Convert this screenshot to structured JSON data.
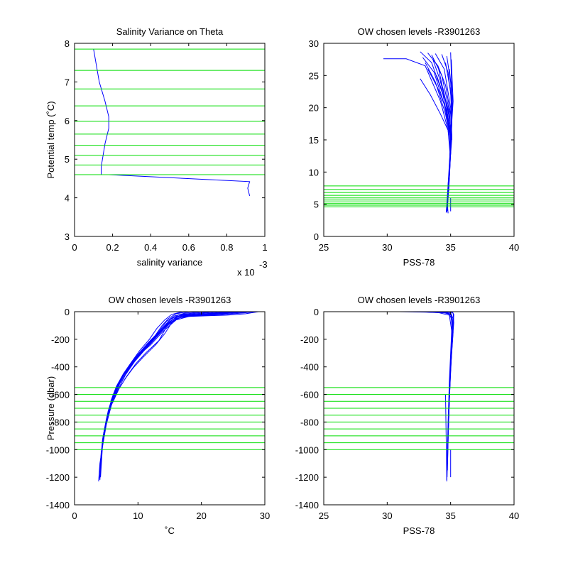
{
  "colors": {
    "profile": "#0000ff",
    "levels": "#00dd00",
    "axes": "#000000"
  },
  "chart_data": [
    {
      "type": "line",
      "title": "Salinity Variance on Theta",
      "xlabel": "salinity variance",
      "ylabel": "Potential temp (˚C)",
      "x_exponent_label": "x 10",
      "x_exponent": "-3",
      "xlim": [
        0,
        1
      ],
      "ylim": [
        3,
        8
      ],
      "xticks": [
        "0",
        "0.2",
        "0.4",
        "0.6",
        "0.8",
        "1"
      ],
      "yticks": [
        "3",
        "4",
        "5",
        "6",
        "7",
        "8"
      ],
      "levels": [
        7.85,
        7.3,
        6.82,
        6.38,
        5.98,
        5.65,
        5.36,
        5.1,
        4.85,
        4.6
      ],
      "series": [
        {
          "x": [
            0.1,
            0.13,
            0.16,
            0.18,
            0.18,
            0.16,
            0.15,
            0.14,
            0.14,
            0.18,
            0.92,
            0.91,
            0.92
          ],
          "y": [
            7.85,
            7.0,
            6.5,
            6.1,
            5.8,
            5.4,
            5.1,
            4.8,
            4.6,
            4.6,
            4.42,
            4.25,
            4.05
          ]
        }
      ]
    },
    {
      "type": "line",
      "title": "OW chosen levels -R3901263",
      "xlabel": "PSS-78",
      "ylabel": "",
      "xlim": [
        25,
        40
      ],
      "ylim": [
        0,
        30
      ],
      "xticks": [
        "25",
        "30",
        "35",
        "40"
      ],
      "yticks": [
        "0",
        "5",
        "10",
        "15",
        "20",
        "25",
        "30"
      ],
      "levels": [
        7.85,
        7.3,
        6.82,
        6.38,
        5.98,
        5.65,
        5.36,
        5.1,
        4.85,
        4.6
      ],
      "series": [
        {
          "x": [
            29.7,
            31.5,
            33.0,
            34.2,
            34.8,
            34.95,
            34.8,
            34.7,
            34.65
          ],
          "y": [
            27.6,
            27.6,
            26.5,
            21.0,
            16.5,
            13.0,
            8.0,
            5.0,
            3.7
          ]
        },
        {
          "x": [
            32.6,
            33.5,
            34.4,
            34.9,
            35.0,
            34.8,
            34.75
          ],
          "y": [
            28.7,
            27.0,
            22.0,
            17.0,
            13.0,
            8.0,
            4.0
          ]
        },
        {
          "x": [
            33.2,
            34.0,
            34.6,
            35.0,
            34.95,
            34.8,
            34.7
          ],
          "y": [
            28.5,
            26.5,
            21.0,
            16.0,
            12.0,
            7.0,
            3.8
          ]
        },
        {
          "x": [
            33.5,
            34.3,
            34.9,
            35.05,
            34.9,
            34.75
          ],
          "y": [
            28.2,
            25.0,
            19.5,
            15.0,
            9.0,
            4.5
          ]
        },
        {
          "x": [
            32.8,
            33.7,
            34.5,
            35.0,
            34.9,
            34.7
          ],
          "y": [
            27.8,
            25.5,
            20.5,
            15.5,
            9.5,
            4.2
          ]
        },
        {
          "x": [
            33.0,
            33.8,
            34.6,
            35.0,
            34.85
          ],
          "y": [
            27.0,
            24.0,
            19.0,
            15.0,
            8.0
          ]
        },
        {
          "x": [
            33.8,
            34.5,
            35.0,
            35.1,
            34.9
          ],
          "y": [
            28.4,
            26.0,
            20.0,
            15.5,
            10.0
          ]
        },
        {
          "x": [
            34.3,
            34.8,
            35.1,
            35.05,
            34.85
          ],
          "y": [
            28.3,
            25.5,
            20.5,
            15.0,
            8.5
          ]
        },
        {
          "x": [
            34.7,
            35.0,
            35.1,
            34.95,
            34.8
          ],
          "y": [
            28.0,
            24.0,
            19.0,
            13.0,
            6.0
          ]
        },
        {
          "x": [
            35.0,
            35.1,
            35.05,
            34.9
          ],
          "y": [
            28.6,
            22.0,
            16.0,
            9.0
          ]
        },
        {
          "x": [
            32.6,
            33.4,
            34.2,
            34.8,
            35.0,
            34.85
          ],
          "y": [
            24.5,
            22.0,
            19.0,
            16.5,
            13.0,
            7.0
          ]
        },
        {
          "x": [
            33.2,
            34.0,
            34.7,
            35.0,
            34.9
          ],
          "y": [
            26.0,
            23.0,
            19.5,
            15.5,
            10.0
          ]
        },
        {
          "x": [
            34.0,
            34.6,
            35.0,
            35.1
          ],
          "y": [
            26.5,
            23.5,
            19.0,
            15.0
          ]
        },
        {
          "x": [
            33.6,
            34.4,
            34.9,
            35.05
          ],
          "y": [
            27.5,
            23.0,
            18.5,
            15.5
          ]
        },
        {
          "x": [
            34.6,
            35.0,
            35.1,
            35.0
          ],
          "y": [
            27.0,
            22.5,
            17.5,
            14.0
          ]
        },
        {
          "x": [
            33.9,
            34.7,
            35.05
          ],
          "y": [
            25.0,
            20.5,
            16.5
          ]
        },
        {
          "x": [
            34.2,
            34.85,
            35.05
          ],
          "y": [
            24.0,
            19.5,
            15.5
          ]
        },
        {
          "x": [
            34.9,
            35.15,
            35.05
          ],
          "y": [
            26.0,
            21.5,
            16.5
          ]
        },
        {
          "x": [
            35.05,
            35.2,
            35.0
          ],
          "y": [
            27.5,
            21.0,
            15.0
          ]
        },
        {
          "x": [
            34.75,
            34.8
          ],
          "y": [
            5.0,
            3.6
          ]
        },
        {
          "x": [
            35.0,
            35.0
          ],
          "y": [
            6.0,
            3.9
          ]
        }
      ]
    },
    {
      "type": "line",
      "title": "OW chosen levels -R3901263",
      "xlabel": "˚C",
      "ylabel": "Pressure (dbar)",
      "xlim": [
        0,
        30
      ],
      "ylim": [
        -1400,
        0
      ],
      "xticks": [
        "0",
        "10",
        "20",
        "30"
      ],
      "yticks": [
        "-1400",
        "-1200",
        "-1000",
        "-800",
        "-600",
        "-400",
        "-200",
        "0"
      ],
      "levels": [
        -550,
        -600,
        -650,
        -700,
        -750,
        -800,
        -850,
        -900,
        -950,
        -1000
      ],
      "series": [
        {
          "x": [
            29,
            27,
            24,
            21,
            18,
            16,
            14,
            12,
            10,
            8.5,
            7,
            6,
            5,
            4.5,
            4.0,
            3.8
          ],
          "y": [
            0,
            -15,
            -25,
            -30,
            -35,
            -60,
            -140,
            -240,
            -320,
            -420,
            -530,
            -640,
            -800,
            -950,
            -1100,
            -1230
          ]
        },
        {
          "x": [
            28,
            25,
            22,
            19,
            16.5,
            15,
            13,
            11,
            9.5,
            8,
            6.8,
            5.8,
            5,
            4.4,
            4.1
          ],
          "y": [
            0,
            -10,
            -20,
            -28,
            -45,
            -80,
            -180,
            -280,
            -360,
            -460,
            -570,
            -680,
            -820,
            -980,
            -1200
          ]
        },
        {
          "x": [
            27,
            24,
            21,
            18,
            16,
            14.5,
            12.5,
            10.5,
            9,
            7.5,
            6.5,
            5.5,
            4.8,
            4.3,
            4.0
          ],
          "y": [
            0,
            -12,
            -22,
            -30,
            -50,
            -100,
            -200,
            -300,
            -380,
            -480,
            -590,
            -700,
            -850,
            -1000,
            -1220
          ]
        },
        {
          "x": [
            26,
            23,
            20,
            17,
            15.5,
            14,
            12,
            10,
            8.5,
            7.2,
            6.2,
            5.4,
            4.7,
            4.2,
            3.9
          ],
          "y": [
            0,
            -8,
            -18,
            -25,
            -55,
            -120,
            -230,
            -320,
            -400,
            -500,
            -610,
            -720,
            -870,
            -1020,
            -1210
          ]
        },
        {
          "x": [
            25,
            22,
            19,
            16.5,
            15,
            13.5,
            11.5,
            9.8,
            8.3,
            7.0,
            6.0,
            5.2,
            4.5,
            4.1
          ],
          "y": [
            0,
            -10,
            -20,
            -30,
            -70,
            -150,
            -250,
            -340,
            -420,
            -520,
            -630,
            -750,
            -900,
            -1100
          ]
        },
        {
          "x": [
            24,
            21,
            18,
            16,
            14.6,
            13,
            11,
            9.3,
            8,
            6.8,
            5.8,
            5.0,
            4.4,
            4.0
          ],
          "y": [
            0,
            -15,
            -25,
            -40,
            -90,
            -170,
            -270,
            -360,
            -440,
            -540,
            -650,
            -780,
            -930,
            -1150
          ]
        },
        {
          "x": [
            23,
            20,
            17,
            15.2,
            14,
            12.5,
            10.5,
            9,
            7.6,
            6.5,
            5.6,
            4.9,
            4.3
          ],
          "y": [
            0,
            -12,
            -22,
            -50,
            -110,
            -190,
            -290,
            -380,
            -460,
            -560,
            -680,
            -820,
            -1000
          ]
        },
        {
          "x": [
            22,
            19,
            16.5,
            15,
            13.8,
            12.2,
            10.2,
            8.7,
            7.4,
            6.3,
            5.5,
            4.8
          ],
          "y": [
            0,
            -10,
            -20,
            -60,
            -130,
            -210,
            -300,
            -390,
            -480,
            -580,
            -700,
            -850
          ]
        },
        {
          "x": [
            20,
            17.5,
            15.8,
            14.5,
            13.2,
            11.5,
            9.8,
            8.4,
            7.2,
            6.1,
            5.3,
            4.6
          ],
          "y": [
            0,
            -10,
            -30,
            -70,
            -150,
            -230,
            -320,
            -410,
            -500,
            -600,
            -720,
            -880
          ]
        },
        {
          "x": [
            18,
            16,
            14.8,
            13.8,
            12.6,
            11,
            9.4,
            8.1,
            6.9,
            5.9,
            5.1
          ],
          "y": [
            0,
            -15,
            -50,
            -100,
            -180,
            -260,
            -350,
            -430,
            -520,
            -630,
            -760
          ]
        },
        {
          "x": [
            17,
            15.3,
            14.2,
            13,
            11.8,
            10.3,
            8.9,
            7.7,
            6.6,
            5.7
          ],
          "y": [
            0,
            -20,
            -60,
            -120,
            -200,
            -280,
            -370,
            -450,
            -540,
            -650
          ]
        },
        {
          "x": [
            28.5,
            26,
            23.5,
            20.5,
            17.5,
            16,
            14.5,
            13.3,
            11.2,
            9.6,
            8.2,
            7.0,
            6.0
          ],
          "y": [
            0,
            -12,
            -20,
            -26,
            -32,
            -50,
            -110,
            -210,
            -300,
            -380,
            -470,
            -560,
            -660
          ]
        },
        {
          "x": [
            26.5,
            24,
            21.5,
            18.5,
            16.8,
            15.4,
            14.2,
            12.8,
            10.8,
            9.2,
            7.9
          ],
          "y": [
            0,
            -8,
            -16,
            -24,
            -40,
            -75,
            -160,
            -240,
            -330,
            -410,
            -490
          ]
        }
      ]
    },
    {
      "type": "line",
      "title": "OW chosen levels -R3901263",
      "xlabel": "PSS-78",
      "ylabel": "",
      "xlim": [
        25,
        40
      ],
      "ylim": [
        -1400,
        0
      ],
      "xticks": [
        "25",
        "30",
        "35",
        "40"
      ],
      "yticks": [
        "-1400",
        "-1200",
        "-1000",
        "-800",
        "-600",
        "-400",
        "-200",
        "0"
      ],
      "levels": [
        -550,
        -600,
        -650,
        -700,
        -750,
        -800,
        -850,
        -900,
        -950,
        -1000
      ],
      "series": [
        {
          "x": [
            31,
            33,
            34.5,
            35.0,
            35.1,
            35.0,
            34.9,
            34.8,
            34.75,
            34.7
          ],
          "y": [
            0,
            -3,
            -8,
            -20,
            -100,
            -300,
            -500,
            -800,
            -1000,
            -1220
          ]
        },
        {
          "x": [
            32,
            33.8,
            34.8,
            35.15,
            35.05,
            34.95,
            34.85,
            34.78,
            34.72
          ],
          "y": [
            0,
            -4,
            -10,
            -60,
            -250,
            -450,
            -700,
            -950,
            -1200
          ]
        },
        {
          "x": [
            33,
            34.3,
            35.0,
            35.2,
            35.1,
            35.0,
            34.9,
            34.8,
            34.75
          ],
          "y": [
            0,
            -5,
            -15,
            -80,
            -220,
            -400,
            -650,
            -900,
            -1150
          ]
        },
        {
          "x": [
            33.8,
            34.7,
            35.1,
            35.2,
            35.05,
            34.92,
            34.82,
            34.76
          ],
          "y": [
            0,
            -6,
            -30,
            -150,
            -350,
            -600,
            -850,
            -1100
          ]
        },
        {
          "x": [
            34.4,
            35.0,
            35.2,
            35.15,
            35.0,
            34.88,
            34.8
          ],
          "y": [
            0,
            -8,
            -50,
            -200,
            -420,
            -700,
            -950
          ]
        },
        {
          "x": [
            34.9,
            35.2,
            35.25,
            35.1,
            34.95,
            34.85
          ],
          "y": [
            0,
            -10,
            -80,
            -260,
            -500,
            -780
          ]
        },
        {
          "x": [
            35.1,
            35.25,
            35.2,
            35.05,
            34.9
          ],
          "y": [
            0,
            -20,
            -120,
            -320,
            -600
          ]
        },
        {
          "x": [
            32.5,
            34.0,
            34.9,
            35.1,
            35.0
          ],
          "y": [
            0,
            -6,
            -25,
            -150,
            -400
          ]
        },
        {
          "x": [
            34.6,
            34.7
          ],
          "y": [
            -600,
            -1230
          ]
        },
        {
          "x": [
            35.0,
            35.0
          ],
          "y": [
            -1000,
            -1200
          ]
        }
      ]
    }
  ]
}
